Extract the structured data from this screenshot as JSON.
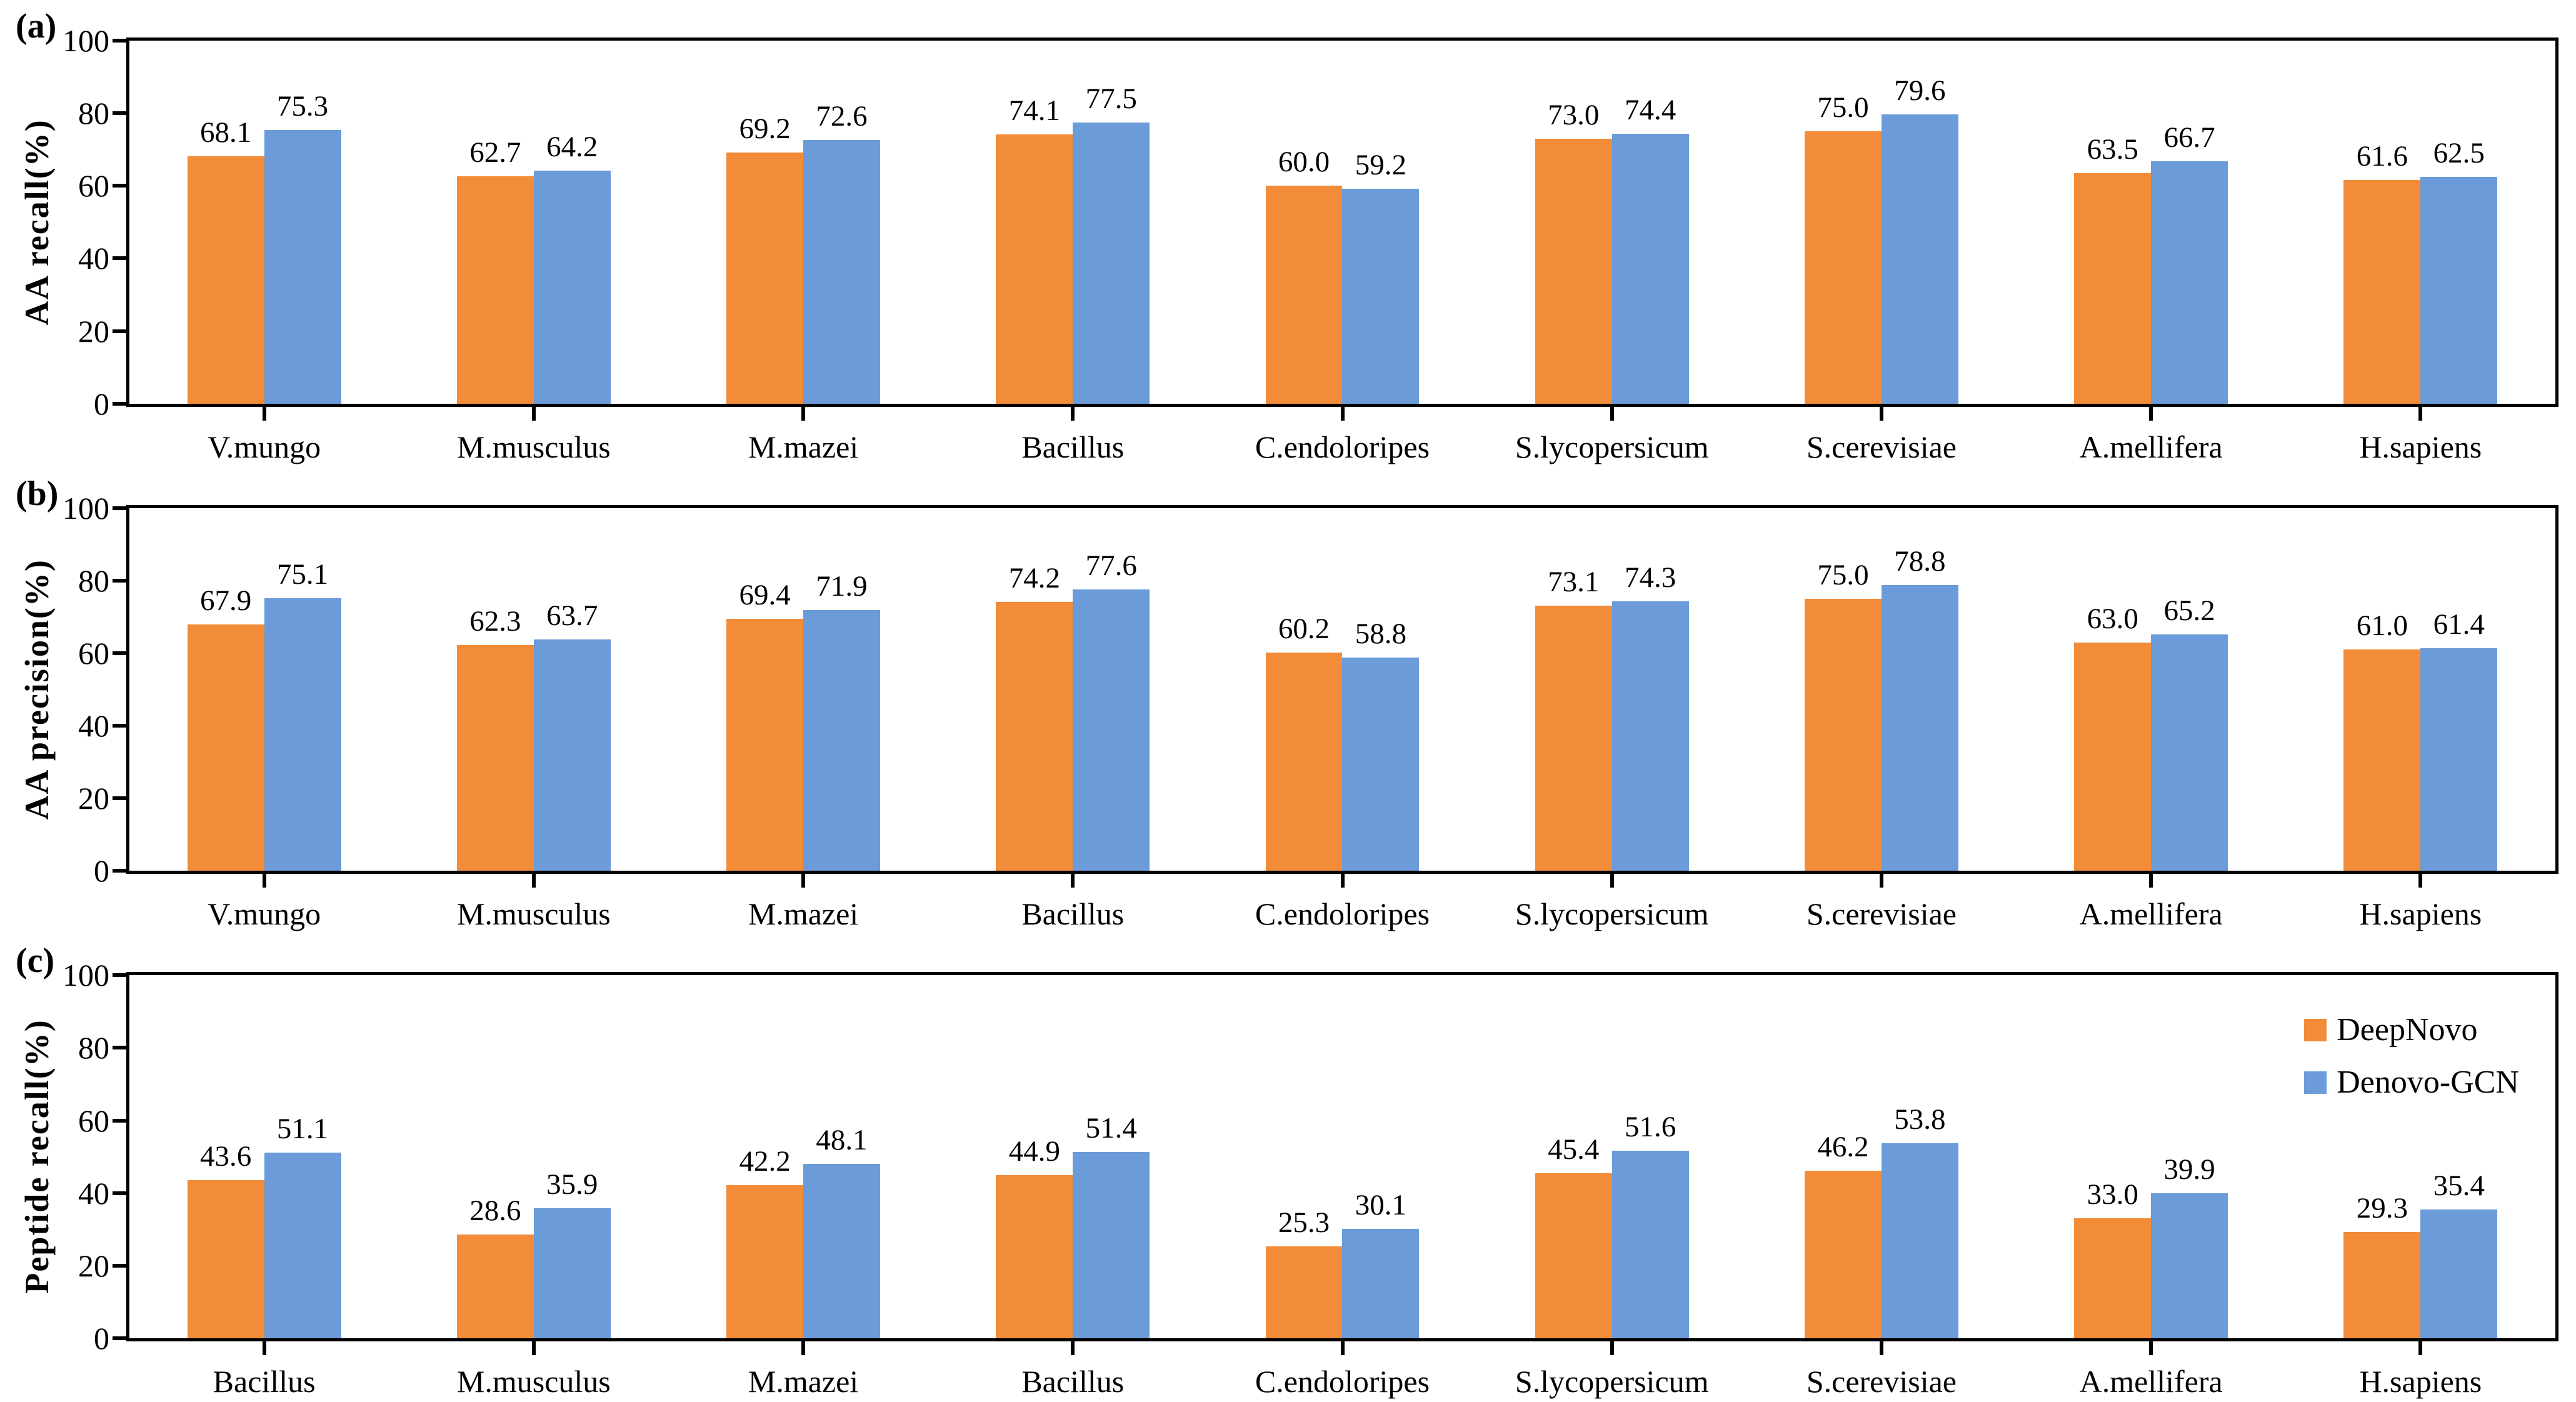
{
  "figure": {
    "background": "#ffffff",
    "axis_color": "#000000",
    "series_colors": [
      "#F28C38",
      "#6B9BD8"
    ]
  },
  "legend": {
    "position": "top-right-of-panel-c",
    "items": [
      {
        "label": "DeepNovo",
        "color": "#F28C38"
      },
      {
        "label": "Denovo-GCN",
        "color": "#6B9BD8"
      }
    ]
  },
  "chart_data": [
    {
      "id": "a",
      "panel_label": "(a)",
      "type": "bar",
      "ylabel": "AA recall(%)",
      "xlabel": "",
      "ylim": [
        0,
        100
      ],
      "yticks": [
        0,
        20,
        40,
        60,
        80,
        100
      ],
      "grid": false,
      "categories": [
        "V.mungo",
        "M.musculus",
        "M.mazei",
        "Bacillus",
        "C.endoloripes",
        "S.lycopersicum",
        "S.cerevisiae",
        "A.mellifera",
        "H.sapiens"
      ],
      "series": [
        {
          "name": "DeepNovo",
          "values": [
            68.1,
            62.7,
            69.2,
            74.1,
            60.0,
            73.0,
            75.0,
            63.5,
            61.6
          ]
        },
        {
          "name": "Denovo-GCN",
          "values": [
            75.3,
            64.2,
            72.6,
            77.5,
            59.2,
            74.4,
            79.6,
            66.7,
            62.5
          ]
        }
      ],
      "show_legend": false
    },
    {
      "id": "b",
      "panel_label": "(b)",
      "type": "bar",
      "ylabel": "AA precision(%)",
      "xlabel": "",
      "ylim": [
        0,
        100
      ],
      "yticks": [
        0,
        20,
        40,
        60,
        80,
        100
      ],
      "grid": false,
      "categories": [
        "V.mungo",
        "M.musculus",
        "M.mazei",
        "Bacillus",
        "C.endoloripes",
        "S.lycopersicum",
        "S.cerevisiae",
        "A.mellifera",
        "H.sapiens"
      ],
      "series": [
        {
          "name": "DeepNovo",
          "values": [
            67.9,
            62.3,
            69.4,
            74.2,
            60.2,
            73.1,
            75.0,
            63.0,
            61.0
          ]
        },
        {
          "name": "Denovo-GCN",
          "values": [
            75.1,
            63.7,
            71.9,
            77.6,
            58.8,
            74.3,
            78.8,
            65.2,
            61.4
          ]
        }
      ],
      "show_legend": false
    },
    {
      "id": "c",
      "panel_label": "(c)",
      "type": "bar",
      "ylabel": "Peptide recall(%)",
      "xlabel": "",
      "ylim": [
        0,
        100
      ],
      "yticks": [
        0,
        20,
        40,
        60,
        80,
        100
      ],
      "grid": false,
      "categories": [
        "Bacillus",
        "M.musculus",
        "M.mazei",
        "Bacillus",
        "C.endoloripes",
        "S.lycopersicum",
        "S.cerevisiae",
        "A.mellifera",
        "H.sapiens"
      ],
      "series": [
        {
          "name": "DeepNovo",
          "values": [
            43.6,
            28.6,
            42.2,
            44.9,
            25.3,
            45.4,
            46.2,
            33.0,
            29.3
          ]
        },
        {
          "name": "Denovo-GCN",
          "values": [
            51.1,
            35.9,
            48.1,
            51.4,
            30.1,
            51.6,
            53.8,
            39.9,
            35.4
          ]
        }
      ],
      "show_legend": true
    }
  ]
}
